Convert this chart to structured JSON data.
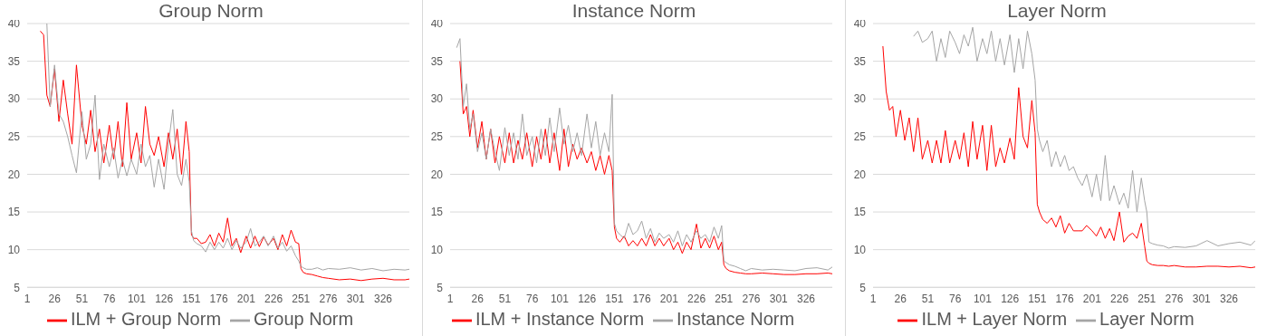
{
  "chart_data": [
    {
      "type": "line",
      "title": "Group Norm",
      "x": [
        13,
        16,
        19,
        22,
        26,
        30,
        34,
        38,
        42,
        46,
        51,
        55,
        59,
        63,
        67,
        71,
        76,
        80,
        84,
        88,
        92,
        96,
        101,
        105,
        109,
        113,
        117,
        121,
        126,
        130,
        134,
        138,
        142,
        146,
        149,
        151,
        153,
        156,
        160,
        164,
        168,
        172,
        176,
        180,
        184,
        188,
        192,
        196,
        201,
        205,
        209,
        213,
        217,
        221,
        226,
        230,
        234,
        238,
        242,
        246,
        249,
        251,
        253,
        256,
        261,
        266,
        271,
        276,
        286,
        296,
        306,
        316,
        326,
        336,
        346,
        350
      ],
      "xlim": [
        1,
        350
      ],
      "xticks": [
        1,
        26,
        51,
        76,
        101,
        126,
        151,
        176,
        201,
        226,
        251,
        276,
        301,
        326
      ],
      "ylim": [
        5,
        40
      ],
      "yticks": [
        5,
        10,
        15,
        20,
        25,
        30,
        35,
        40
      ],
      "grid": "y",
      "legend": "bottom",
      "series": [
        {
          "name": "ILM + Group Norm",
          "color": "#ff0000",
          "values": [
            39,
            38.5,
            30.5,
            29,
            34,
            27,
            32.5,
            28,
            24,
            34.5,
            26.5,
            24,
            28.5,
            23,
            26,
            21.5,
            26.5,
            22,
            27,
            21,
            29.5,
            22,
            25.5,
            21.5,
            29,
            24,
            22.5,
            25,
            21,
            25.5,
            22,
            26,
            20,
            27,
            23,
            12,
            11.5,
            11.5,
            10.8,
            11,
            12,
            10.5,
            12.2,
            11,
            14.2,
            10.5,
            11.5,
            9.6,
            11.8,
            10.2,
            11.8,
            10.4,
            11.7,
            10.6,
            11.5,
            10,
            12,
            10.5,
            12.6,
            11,
            10.8,
            7.5,
            7,
            6.8,
            6.7,
            6.5,
            6.3,
            6.2,
            6,
            6.1,
            5.9,
            6.1,
            6.2,
            6,
            6,
            6.1
          ]
        },
        {
          "name": "Group Norm",
          "color": "#a5a5a5",
          "values": [
            null,
            null,
            40,
            29,
            34.5,
            28,
            27,
            25,
            22.5,
            20.2,
            28.3,
            22,
            24,
            30.5,
            19.3,
            24,
            21,
            23.5,
            19.5,
            22,
            19.8,
            22,
            20,
            24,
            21,
            22.5,
            18.3,
            22,
            18,
            24,
            28.6,
            20,
            18.5,
            22,
            19,
            12.5,
            11.2,
            10.8,
            10.5,
            9.7,
            11,
            10,
            11,
            10.2,
            11.5,
            10,
            11.2,
            10.2,
            11,
            12.8,
            10.5,
            11,
            11.8,
            10.5,
            11.8,
            10.2,
            11,
            9.8,
            10.5,
            9.2,
            8.5,
            7.8,
            7.6,
            7.4,
            7.4,
            7.6,
            7.3,
            7.5,
            7.4,
            7.6,
            7.3,
            7.5,
            7.2,
            7.4,
            7.3,
            7.4
          ]
        }
      ]
    },
    {
      "type": "line",
      "title": "Instance Norm",
      "x": [
        7,
        10,
        13,
        16,
        19,
        22,
        26,
        30,
        34,
        38,
        42,
        46,
        51,
        55,
        59,
        63,
        67,
        71,
        76,
        80,
        84,
        88,
        92,
        96,
        101,
        105,
        109,
        113,
        117,
        121,
        126,
        130,
        134,
        138,
        142,
        146,
        149,
        151,
        153,
        156,
        160,
        164,
        168,
        172,
        176,
        180,
        184,
        188,
        192,
        196,
        201,
        205,
        209,
        213,
        217,
        221,
        226,
        230,
        234,
        238,
        242,
        246,
        249,
        251,
        253,
        256,
        261,
        266,
        271,
        276,
        286,
        296,
        306,
        316,
        326,
        336,
        346,
        350
      ],
      "xlim": [
        1,
        350
      ],
      "xticks": [
        1,
        26,
        51,
        76,
        101,
        126,
        151,
        176,
        201,
        226,
        251,
        276,
        301,
        326
      ],
      "ylim": [
        5,
        40
      ],
      "yticks": [
        5,
        10,
        15,
        20,
        25,
        30,
        35,
        40
      ],
      "grid": "y",
      "legend": "bottom",
      "series": [
        {
          "name": "ILM + Instance Norm",
          "color": "#ff0000",
          "values": [
            null,
            35,
            28,
            29,
            25,
            28.5,
            23.5,
            27,
            22,
            26,
            21.5,
            25,
            21.5,
            25.5,
            21.5,
            24.5,
            22,
            25.5,
            21,
            25,
            22,
            26,
            21.5,
            25.5,
            20.5,
            26,
            21,
            24,
            22,
            23.5,
            21.5,
            23,
            20.5,
            22.5,
            20,
            22.5,
            20.5,
            13,
            11.5,
            11,
            11.8,
            10.5,
            11.2,
            10.5,
            11.5,
            10.5,
            12,
            10.5,
            11.5,
            10.5,
            11.5,
            10,
            11,
            9.5,
            11,
            10,
            13.4,
            10.2,
            11.5,
            10.2,
            11.8,
            10,
            11,
            8,
            7.5,
            7.2,
            7,
            6.9,
            6.8,
            6.8,
            6.9,
            6.8,
            6.7,
            6.7,
            6.8,
            6.8,
            6.9,
            6.8
          ]
        },
        {
          "name": "Instance Norm",
          "color": "#a5a5a5",
          "values": [
            36.8,
            38,
            29,
            32,
            26,
            28,
            23,
            25.5,
            22,
            26,
            23,
            20.5,
            26.2,
            22.5,
            25.5,
            22,
            28,
            22.5,
            25,
            21.5,
            26,
            22.5,
            27.5,
            23,
            28.8,
            24,
            26.5,
            23,
            25.5,
            22.5,
            28,
            23.5,
            27,
            22.5,
            25.5,
            23,
            30.6,
            13.5,
            12.5,
            12,
            11.5,
            13.5,
            12,
            12.5,
            13.8,
            11.5,
            12.8,
            11,
            12.2,
            11.5,
            12,
            11,
            12.5,
            10.5,
            12,
            11,
            12.5,
            11.5,
            12,
            11,
            13,
            11.5,
            13.2,
            8.5,
            8.3,
            8,
            7.8,
            7.5,
            7.2,
            7.5,
            7.3,
            7.4,
            7.3,
            7.2,
            7.5,
            7.6,
            7.3,
            7.7
          ]
        }
      ]
    },
    {
      "type": "line",
      "title": "Layer Norm",
      "x": [
        10,
        13,
        16,
        19,
        22,
        26,
        30,
        34,
        38,
        42,
        46,
        51,
        55,
        59,
        63,
        67,
        71,
        76,
        80,
        84,
        88,
        92,
        96,
        101,
        105,
        109,
        113,
        117,
        121,
        126,
        130,
        134,
        138,
        142,
        146,
        149,
        151,
        153,
        156,
        160,
        164,
        168,
        172,
        176,
        180,
        184,
        188,
        192,
        196,
        201,
        205,
        209,
        213,
        217,
        221,
        226,
        230,
        234,
        238,
        242,
        246,
        249,
        251,
        253,
        256,
        261,
        266,
        271,
        276,
        286,
        296,
        306,
        316,
        326,
        336,
        346,
        350
      ],
      "xlim": [
        1,
        350
      ],
      "xticks": [
        1,
        26,
        51,
        76,
        101,
        126,
        151,
        176,
        201,
        226,
        251,
        276,
        301,
        326
      ],
      "ylim": [
        5,
        40
      ],
      "yticks": [
        5,
        10,
        15,
        20,
        25,
        30,
        35,
        40
      ],
      "grid": "y",
      "legend": "bottom",
      "series": [
        {
          "name": "ILM + Layer Norm",
          "color": "#ff0000",
          "values": [
            37,
            31,
            28.5,
            29,
            25,
            28.5,
            24.5,
            27.5,
            23,
            27.5,
            22,
            24.5,
            21.5,
            24.5,
            21.5,
            25.8,
            21.5,
            24.5,
            22,
            25.5,
            21,
            27,
            22,
            26.5,
            20.5,
            26.5,
            21,
            23.5,
            21.5,
            24.8,
            22,
            31.5,
            25,
            23.5,
            29.8,
            25.5,
            16,
            15,
            14,
            13.5,
            14.2,
            13,
            14.5,
            12.2,
            13.5,
            12.5,
            12.5,
            12.5,
            13.2,
            12.5,
            11.8,
            13,
            11.5,
            12.8,
            11.2,
            15,
            11,
            11.8,
            12.2,
            11.5,
            13.5,
            10.5,
            8.5,
            8.2,
            8,
            7.9,
            7.9,
            7.8,
            7.9,
            7.7,
            7.7,
            7.8,
            7.8,
            7.7,
            7.8,
            7.6,
            7.7
          ]
        },
        {
          "name": "Layer Norm",
          "color": "#a5a5a5",
          "values": [
            null,
            null,
            null,
            null,
            null,
            null,
            null,
            null,
            38.3,
            39,
            37.5,
            38,
            39,
            35,
            38,
            35.5,
            39,
            37.5,
            36,
            38.5,
            37,
            39.5,
            35,
            38,
            36,
            39,
            35,
            38,
            34.5,
            38.5,
            33.5,
            38,
            34,
            39,
            36,
            32.5,
            26,
            24.5,
            23,
            24.5,
            21,
            23,
            21,
            22.5,
            20.5,
            21,
            19.5,
            18.5,
            20,
            17,
            20,
            16.5,
            22.5,
            16.5,
            18.5,
            16,
            17.5,
            15.5,
            20.5,
            15,
            19.5,
            16.5,
            15,
            11,
            10.8,
            10.6,
            10.5,
            10.2,
            10.4,
            10.3,
            10.5,
            11.2,
            10.5,
            10.8,
            11,
            10.6,
            11.2
          ]
        }
      ]
    }
  ]
}
